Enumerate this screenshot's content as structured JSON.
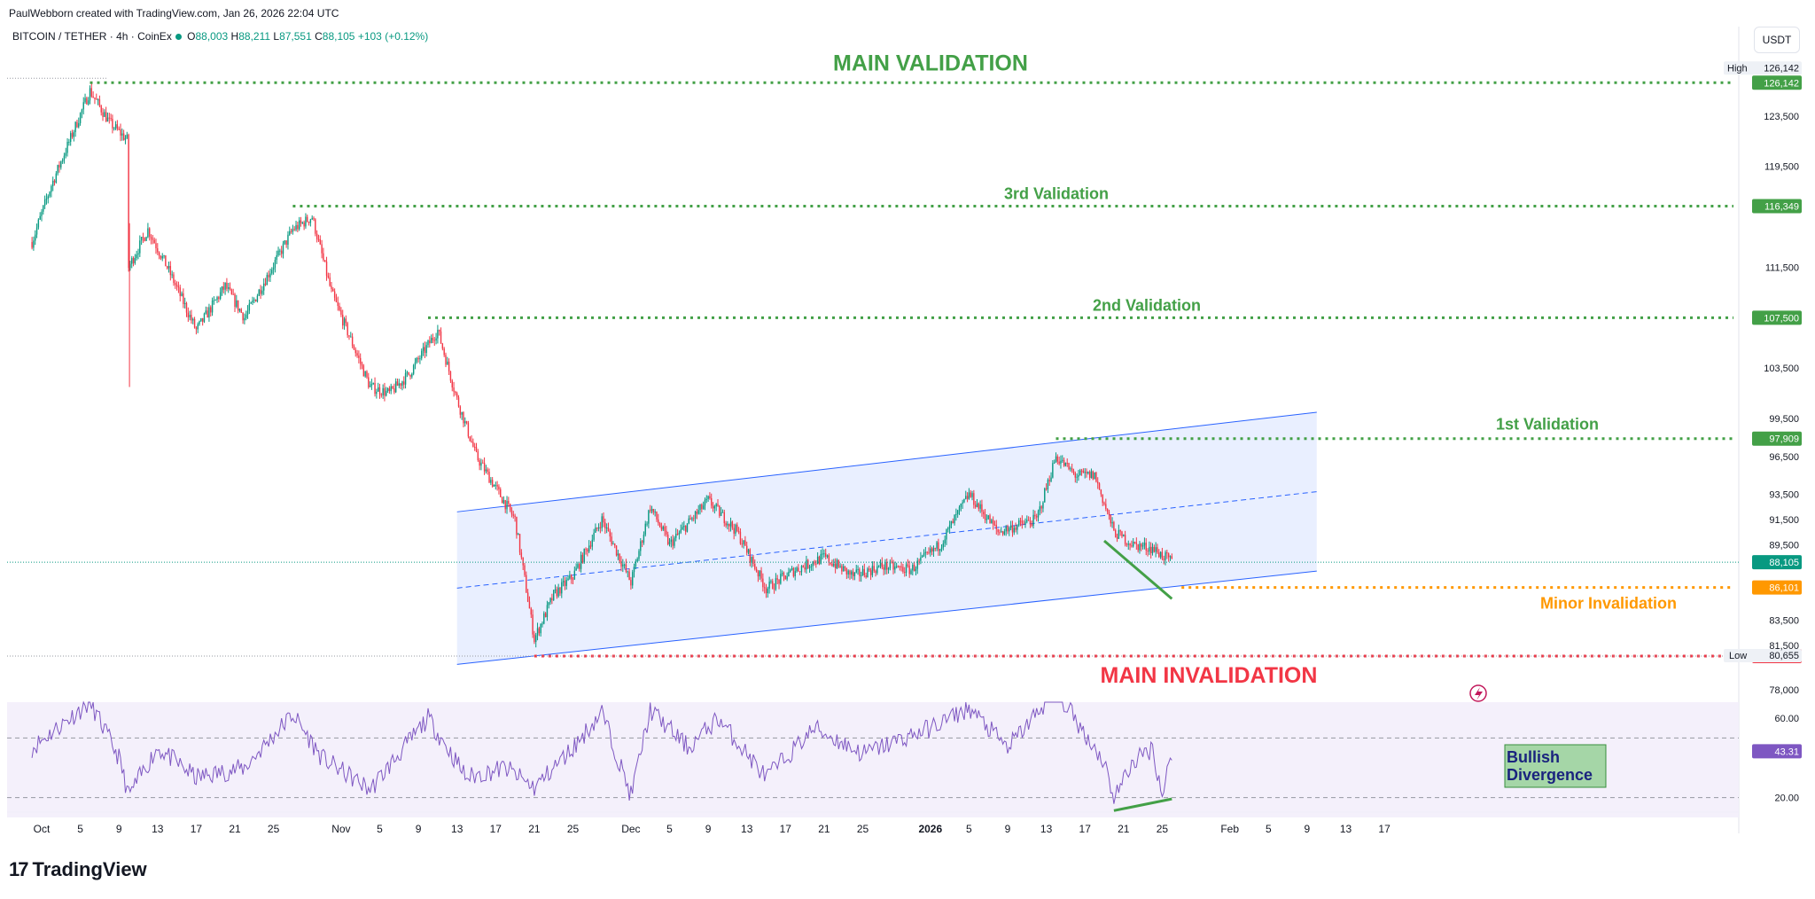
{
  "attribution": "PaulWebborn created with TradingView.com, Jan 26, 2026 22:04 UTC",
  "symbol": {
    "name": "BITCOIN / TETHER · 4h · CoinEx",
    "open_label": "O",
    "open": "88,003",
    "high_label": "H",
    "high": "88,211",
    "low_label": "L",
    "low": "87,551",
    "close_label": "C",
    "close": "88,105",
    "change": "+103 (+0.12%)"
  },
  "currency_button": "USDT",
  "footer_brand": "TradingView",
  "colors": {
    "up": "#089981",
    "down": "#f23645",
    "validation": "#43a047",
    "invalidation": "#f23645",
    "minor": "#ff9800",
    "channel": "#2962ff",
    "rsi": "#7e57c2",
    "divergence_box": "#a5d6a7"
  },
  "chart_data": {
    "type": "candlestick",
    "timeframe": "4h",
    "ylim": [
      77000,
      127500
    ],
    "price_ticks": [
      123500,
      119500,
      111500,
      103500,
      99500,
      96500,
      93500,
      91500,
      89500,
      83500,
      81500,
      78000
    ],
    "price_tick_labels": [
      "123,500",
      "119,500",
      "111,500",
      "103,500",
      "99,500",
      "96,500",
      "93,500",
      "91,500",
      "89,500",
      "83,500",
      "81,500",
      "78,000"
    ],
    "time_axis_labels": [
      "Oct",
      "5",
      "9",
      "13",
      "17",
      "21",
      "25",
      "Nov",
      "5",
      "9",
      "13",
      "17",
      "21",
      "25",
      "Dec",
      "5",
      "9",
      "13",
      "17",
      "21",
      "25",
      "2026",
      "5",
      "9",
      "13",
      "17",
      "21",
      "25",
      "Feb",
      "5",
      "9",
      "13",
      "17"
    ],
    "time_axis_dates": [
      "2025-10-01",
      "2025-10-05",
      "2025-10-09",
      "2025-10-13",
      "2025-10-17",
      "2025-10-21",
      "2025-10-25",
      "2025-11-01",
      "2025-11-05",
      "2025-11-09",
      "2025-11-13",
      "2025-11-17",
      "2025-11-21",
      "2025-11-25",
      "2025-12-01",
      "2025-12-05",
      "2025-12-09",
      "2025-12-13",
      "2025-12-17",
      "2025-12-21",
      "2025-12-25",
      "2026-01-01",
      "2026-01-05",
      "2026-01-09",
      "2026-01-13",
      "2026-01-17",
      "2026-01-21",
      "2026-01-25",
      "2026-02-01",
      "2026-02-05",
      "2026-02-09",
      "2026-02-13",
      "2026-02-17"
    ],
    "price_path": [
      {
        "date": "2025-09-30",
        "price": 113500
      },
      {
        "date": "2025-10-02",
        "price": 118000
      },
      {
        "date": "2025-10-06",
        "price": 125500
      },
      {
        "date": "2025-10-08",
        "price": 123000
      },
      {
        "date": "2025-10-10",
        "price": 121500
      },
      {
        "date": "2025-10-10",
        "price": 111500
      },
      {
        "date": "2025-10-12",
        "price": 114500
      },
      {
        "date": "2025-10-14",
        "price": 111500
      },
      {
        "date": "2025-10-17",
        "price": 106500
      },
      {
        "date": "2025-10-20",
        "price": 110000
      },
      {
        "date": "2025-10-22",
        "price": 107500
      },
      {
        "date": "2025-10-27",
        "price": 114500
      },
      {
        "date": "2025-10-29",
        "price": 115500
      },
      {
        "date": "2025-10-31",
        "price": 109500
      },
      {
        "date": "2025-11-04",
        "price": 102000
      },
      {
        "date": "2025-11-06",
        "price": 101500
      },
      {
        "date": "2025-11-08",
        "price": 103000
      },
      {
        "date": "2025-11-11",
        "price": 106500
      },
      {
        "date": "2025-11-13",
        "price": 101000
      },
      {
        "date": "2025-11-15",
        "price": 96500
      },
      {
        "date": "2025-11-17",
        "price": 94000
      },
      {
        "date": "2025-11-19",
        "price": 91500
      },
      {
        "date": "2025-11-21",
        "price": 82000
      },
      {
        "date": "2025-11-23",
        "price": 85500
      },
      {
        "date": "2025-11-25",
        "price": 87000
      },
      {
        "date": "2025-11-28",
        "price": 91500
      },
      {
        "date": "2025-12-01",
        "price": 86500
      },
      {
        "date": "2025-12-03",
        "price": 92500
      },
      {
        "date": "2025-12-05",
        "price": 89500
      },
      {
        "date": "2025-12-09",
        "price": 93000
      },
      {
        "date": "2025-12-12",
        "price": 90500
      },
      {
        "date": "2025-12-15",
        "price": 86000
      },
      {
        "date": "2025-12-18",
        "price": 87500
      },
      {
        "date": "2025-12-21",
        "price": 88500
      },
      {
        "date": "2025-12-24",
        "price": 87000
      },
      {
        "date": "2025-12-27",
        "price": 87800
      },
      {
        "date": "2025-12-30",
        "price": 87500
      },
      {
        "date": "2026-01-02",
        "price": 89500
      },
      {
        "date": "2026-01-05",
        "price": 93500
      },
      {
        "date": "2026-01-08",
        "price": 90500
      },
      {
        "date": "2026-01-12",
        "price": 91500
      },
      {
        "date": "2026-01-14",
        "price": 96500
      },
      {
        "date": "2026-01-16",
        "price": 95000
      },
      {
        "date": "2026-01-18",
        "price": 95000
      },
      {
        "date": "2026-01-20",
        "price": 90500
      },
      {
        "date": "2026-01-22",
        "price": 89500
      },
      {
        "date": "2026-01-24",
        "price": 89200
      },
      {
        "date": "2026-01-26",
        "price": 88105
      }
    ],
    "levels": [
      {
        "name": "MAIN VALIDATION",
        "price": 126142,
        "price_label": "126,142",
        "color": "#43a047",
        "start": "2025-10-06"
      },
      {
        "name": "3rd Validation",
        "price": 116349,
        "price_label": "116,349",
        "color": "#43a047",
        "start": "2025-10-27"
      },
      {
        "name": "2nd Validation",
        "price": 107500,
        "price_label": "107,500",
        "color": "#43a047",
        "start": "2025-11-10"
      },
      {
        "name": "1st Validation",
        "price": 97909,
        "price_label": "97,909",
        "color": "#43a047",
        "start": "2026-01-14"
      },
      {
        "name": "Minor Invalidation",
        "price": 86101,
        "price_label": "86,101",
        "color": "#ff9800",
        "start": "2026-01-27"
      },
      {
        "name": "MAIN INVALIDATION",
        "price": 80655,
        "price_label": "80,655",
        "color": "#f23645",
        "start": "2025-11-21"
      }
    ],
    "high_label": "High",
    "high_value": "126,142",
    "low_label": "Low",
    "low_value": "80,655",
    "last_price_label": "88,105",
    "channel": {
      "upper": [
        {
          "date": "2025-11-13",
          "price": 92100
        },
        {
          "date": "2026-02-10",
          "price": 100000
        }
      ],
      "lower": [
        {
          "date": "2025-11-13",
          "price": 80000
        },
        {
          "date": "2026-02-10",
          "price": 87400
        }
      ]
    },
    "rsi": {
      "ylim": [
        10,
        68
      ],
      "ticks": [
        60,
        20
      ],
      "tick_labels": [
        "60.00",
        "20.00"
      ],
      "bands": [
        50,
        20
      ],
      "current_label": "43.31",
      "path": [
        {
          "date": "2025-09-30",
          "value": 45
        },
        {
          "date": "2025-10-06",
          "value": 68
        },
        {
          "date": "2025-10-09",
          "value": 40
        },
        {
          "date": "2025-10-10",
          "value": 21
        },
        {
          "date": "2025-10-13",
          "value": 45
        },
        {
          "date": "2025-10-17",
          "value": 30
        },
        {
          "date": "2025-10-22",
          "value": 35
        },
        {
          "date": "2025-10-27",
          "value": 62
        },
        {
          "date": "2025-10-30",
          "value": 40
        },
        {
          "date": "2025-11-04",
          "value": 24
        },
        {
          "date": "2025-11-10",
          "value": 60
        },
        {
          "date": "2025-11-14",
          "value": 30
        },
        {
          "date": "2025-11-18",
          "value": 35
        },
        {
          "date": "2025-11-21",
          "value": 25
        },
        {
          "date": "2025-11-25",
          "value": 45
        },
        {
          "date": "2025-11-28",
          "value": 63
        },
        {
          "date": "2025-12-01",
          "value": 21
        },
        {
          "date": "2025-12-03",
          "value": 64
        },
        {
          "date": "2025-12-07",
          "value": 45
        },
        {
          "date": "2025-12-10",
          "value": 60
        },
        {
          "date": "2025-12-15",
          "value": 30
        },
        {
          "date": "2025-12-20",
          "value": 55
        },
        {
          "date": "2025-12-25",
          "value": 42
        },
        {
          "date": "2026-01-01",
          "value": 55
        },
        {
          "date": "2026-01-05",
          "value": 65
        },
        {
          "date": "2026-01-09",
          "value": 45
        },
        {
          "date": "2026-01-14",
          "value": 74
        },
        {
          "date": "2026-01-17",
          "value": 52
        },
        {
          "date": "2026-01-19",
          "value": 38
        },
        {
          "date": "2026-01-20",
          "value": 20
        },
        {
          "date": "2026-01-22",
          "value": 38
        },
        {
          "date": "2026-01-24",
          "value": 45
        },
        {
          "date": "2026-01-25",
          "value": 21
        },
        {
          "date": "2026-01-26",
          "value": 43.31
        }
      ],
      "divergence_line": [
        {
          "date": "2026-01-20",
          "value": 17
        },
        {
          "date": "2026-01-26",
          "value": 22
        }
      ]
    },
    "divergence_price_line": [
      {
        "date": "2026-01-19",
        "price": 89800
      },
      {
        "date": "2026-01-26",
        "price": 85200
      }
    ],
    "annotation": {
      "text_line1": "Bullish",
      "text_line2": "Divergence"
    }
  }
}
